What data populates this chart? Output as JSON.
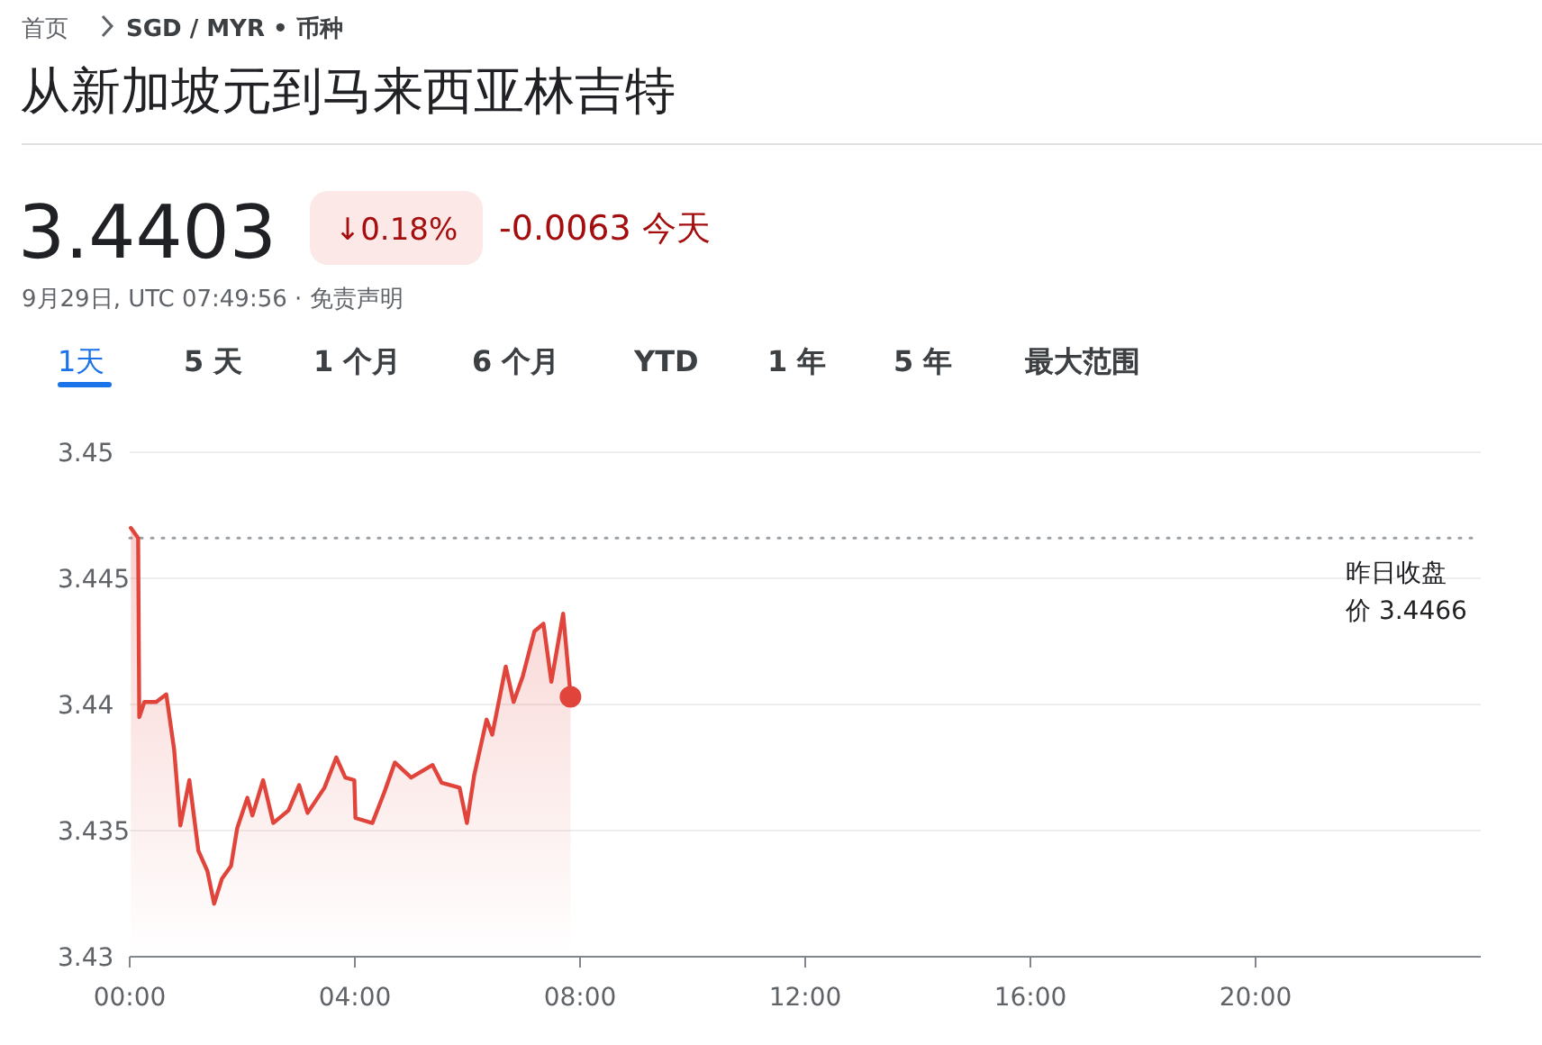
{
  "chart_data": {
    "type": "area",
    "title": "从新加坡元到马来西亚林吉特",
    "annotations": [
      "首页",
      "SGD / MYR • 币种",
      "3.4403",
      "↓0.18%",
      "-0.0063 今天",
      "9月29日, UTC 07:49:56 · 免责声明",
      "1天",
      "5 天",
      "1 个月",
      "6 个月",
      "YTD",
      "1 年",
      "5 年",
      "最大范围"
    ],
    "series": [
      {
        "color": "#e0443b",
        "x": [
          0.02,
          0.15,
          0.17,
          0.26,
          0.47,
          0.65,
          0.79,
          0.9,
          1.06,
          1.22,
          1.38,
          1.5,
          1.64,
          1.8,
          1.91,
          2.09,
          2.18,
          2.37,
          2.55,
          2.82,
          3.01,
          3.16,
          3.46,
          3.67,
          3.83,
          3.99,
          4.01,
          4.31,
          4.52,
          4.71,
          5.0,
          5.38,
          5.54,
          5.86,
          5.99,
          6.12,
          6.34,
          6.44,
          6.68,
          6.82,
          6.98,
          7.19,
          7.35,
          7.49,
          7.7,
          7.83
        ],
        "values": [
          3.447,
          3.4466,
          3.4395,
          3.4401,
          3.4401,
          3.4404,
          3.4382,
          3.4352,
          3.437,
          3.4342,
          3.4334,
          3.4321,
          3.4331,
          3.4336,
          3.4351,
          3.4363,
          3.4356,
          3.437,
          3.4353,
          3.4358,
          3.4368,
          3.4357,
          3.4367,
          3.4379,
          3.4371,
          3.437,
          3.4355,
          3.4353,
          3.4365,
          3.4377,
          3.4371,
          3.4376,
          3.4369,
          3.4367,
          3.4353,
          3.4372,
          3.4394,
          3.4388,
          3.4415,
          3.4401,
          3.4411,
          3.4429,
          3.4432,
          3.4409,
          3.4436,
          3.4404
        ]
      },
      {
        "type": "scatter",
        "marker": "circle",
        "color": "#e0443b",
        "x": [
          7.83
        ],
        "values": [
          3.4403
        ]
      }
    ],
    "xlim": [
      0,
      24
    ],
    "xticks": [
      {
        "value": 0,
        "label": "00:00"
      },
      {
        "value": 4,
        "label": "04:00"
      },
      {
        "value": 8,
        "label": "08:00"
      },
      {
        "value": 12,
        "label": "12:00"
      },
      {
        "value": 16,
        "label": "16:00"
      },
      {
        "value": 20,
        "label": "20:00"
      }
    ],
    "ylim": [
      3.43,
      3.45
    ],
    "yticks": [
      3.43,
      3.435,
      3.44,
      3.445,
      3.45
    ],
    "grid": "y",
    "ref_lines": [
      {
        "axis": "y",
        "value": 3.4466,
        "label": "昨日收盘价 3.4466",
        "line_style": "dotted",
        "color": "#9aa0a6"
      }
    ]
  }
}
